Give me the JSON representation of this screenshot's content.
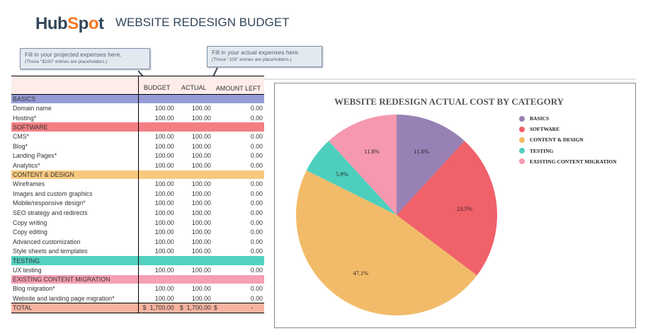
{
  "header": {
    "logo": "HubSpot",
    "title": "WEBSITE REDESIGN BUDGET"
  },
  "callouts": [
    {
      "line1": "Fill in your projected expenses here.",
      "line2": "(Those \"$100\" entries are placeholders.)"
    },
    {
      "line1": "Fill in your actual expenses here.",
      "line2": "(Those \"100\" entries are placeholders.)"
    }
  ],
  "table": {
    "columns": [
      "",
      "BUDGET",
      "ACTUAL",
      "AMOUNT LEFT"
    ],
    "rows": [
      {
        "type": "cat",
        "label": "BASICS",
        "color": "#949cd8"
      },
      {
        "label": "Domain name",
        "budget": "100.00",
        "actual": "100.00",
        "left": "0.00"
      },
      {
        "label": "Hosting*",
        "budget": "100.00",
        "actual": "100.00",
        "left": "0.00"
      },
      {
        "type": "cat",
        "label": "SOFTWARE",
        "color": "#f37f84"
      },
      {
        "label": "CMS*",
        "budget": "100.00",
        "actual": "100.00",
        "left": "0.00"
      },
      {
        "label": "Blog*",
        "budget": "100.00",
        "actual": "100.00",
        "left": "0.00"
      },
      {
        "label": "Landing Pages*",
        "budget": "100.00",
        "actual": "100.00",
        "left": "0.00"
      },
      {
        "label": "Analytics*",
        "budget": "100.00",
        "actual": "100.00",
        "left": "0.00"
      },
      {
        "type": "cat",
        "label": "CONTENT & DESIGN",
        "color": "#f7c97e"
      },
      {
        "label": "Wireframes",
        "budget": "100.00",
        "actual": "100.00",
        "left": "0.00"
      },
      {
        "label": "Images and custom graphics",
        "budget": "100.00",
        "actual": "100.00",
        "left": "0.00"
      },
      {
        "label": "Mobile/responsive design*",
        "budget": "100.00",
        "actual": "100.00",
        "left": "0.00"
      },
      {
        "label": "SEO strategy and redirects",
        "budget": "100.00",
        "actual": "100.00",
        "left": "0.00"
      },
      {
        "label": "Copy writing",
        "budget": "100.00",
        "actual": "100.00",
        "left": "0.00"
      },
      {
        "label": "Copy editing",
        "budget": "100.00",
        "actual": "100.00",
        "left": "0.00"
      },
      {
        "label": "Advanced customization",
        "budget": "100.00",
        "actual": "100.00",
        "left": "0.00"
      },
      {
        "label": "Style sheets and templates",
        "budget": "100.00",
        "actual": "100.00",
        "left": "0.00"
      },
      {
        "type": "cat",
        "label": "TESTING",
        "color": "#52d1bf"
      },
      {
        "label": "UX testing",
        "budget": "100.00",
        "actual": "100.00",
        "left": "0.00"
      },
      {
        "type": "cat",
        "label": "EXISTING CONTENT MIGRATION",
        "color": "#f5a0b4"
      },
      {
        "label": "Blog migration*",
        "budget": "100.00",
        "actual": "100.00",
        "left": "0.00"
      },
      {
        "label": "Website and landing page migration*",
        "budget": "100.00",
        "actual": "100.00",
        "left": "0.00"
      }
    ],
    "total": {
      "label": "TOTAL",
      "budget": "$  1,700.00",
      "actual": "$  1,700.00",
      "left_symbol": "$",
      "left": "-"
    }
  },
  "chart_data": {
    "type": "pie",
    "title": "WEBSITE REDESIGN ACTUAL COST BY CATEGORY",
    "legend_position": "right",
    "categories": [
      "BASICS",
      "SOFTWARE",
      "CONTENT & DESIGN",
      "TESTING",
      "EXISTING CONTENT MIGRATION"
    ],
    "values": [
      11.8,
      23.5,
      47.1,
      5.9,
      11.8
    ],
    "labels": [
      "11.8%",
      "23.5%",
      "47.1%",
      "5.9%",
      "11.8%"
    ],
    "colors": [
      "#9881b4",
      "#f0616a",
      "#f2bb69",
      "#4ecfbd",
      "#f598b0"
    ]
  }
}
